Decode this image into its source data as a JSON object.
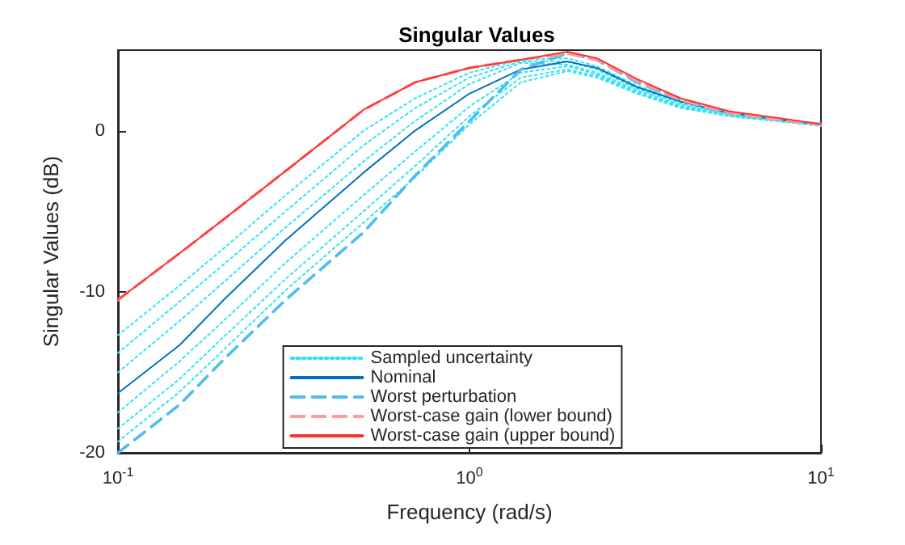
{
  "chart_data": {
    "type": "line",
    "title": "Singular Values",
    "xlabel": "Frequency (rad/s)",
    "ylabel": "Singular Values (dB)",
    "x": [
      0.1,
      0.15,
      0.2,
      0.3,
      0.5,
      0.7,
      1,
      1.4,
      1.9,
      2.3,
      3,
      4,
      5.5,
      7.5,
      10
    ],
    "log": "x",
    "xlim": [
      0.1,
      10
    ],
    "xticks": [
      {
        "value": 0.1,
        "label": "10$^{-1}$"
      },
      {
        "value": 1,
        "label": "10$^{0}$"
      },
      {
        "value": 10,
        "label": "10$^{1}$"
      }
    ],
    "ylim": [
      -20,
      5
    ],
    "yticks": [
      -20,
      -10,
      0
    ],
    "grid": false,
    "legend": "bottom",
    "marker": "none",
    "series": [
      {
        "name": "Sampled uncertainty",
        "color": "#33e3f5",
        "line_style": "dotted",
        "values": [
          -12.7,
          -9.6,
          -7.3,
          -4.0,
          0.0,
          2.0,
          3.6,
          4.4,
          4.5,
          4.0,
          2.8,
          1.8,
          1.1,
          0.7,
          0.4
        ]
      },
      {
        "color": "#33e3f5",
        "line_style": "dotted",
        "values": [
          -13.8,
          -10.6,
          -8.3,
          -5.0,
          -0.9,
          1.4,
          3.3,
          4.3,
          4.3,
          3.8,
          2.6,
          1.7,
          1.0,
          0.7,
          0.4
        ]
      },
      {
        "color": "#33e3f5",
        "line_style": "dotted",
        "values": [
          -15.0,
          -11.8,
          -9.4,
          -6.0,
          -1.9,
          0.6,
          2.9,
          4.2,
          4.1,
          3.6,
          2.5,
          1.6,
          1.0,
          0.6,
          0.4
        ]
      },
      {
        "color": "#33e3f5",
        "line_style": "dotted",
        "values": [
          -17.5,
          -14.3,
          -11.8,
          -8.2,
          -4.0,
          -1.3,
          1.5,
          3.6,
          4.0,
          3.5,
          2.4,
          1.5,
          0.9,
          0.6,
          0.4
        ]
      },
      {
        "color": "#33e3f5",
        "line_style": "dotted",
        "values": [
          -18.5,
          -15.4,
          -12.8,
          -9.2,
          -5.0,
          -2.2,
          0.9,
          3.3,
          3.8,
          3.4,
          2.3,
          1.5,
          0.9,
          0.6,
          0.3
        ]
      },
      {
        "color": "#33e3f5",
        "line_style": "dotted",
        "values": [
          -19.3,
          -16.2,
          -13.6,
          -9.9,
          -5.7,
          -2.9,
          0.4,
          3.0,
          3.7,
          3.3,
          2.3,
          1.4,
          0.9,
          0.6,
          0.3
        ]
      },
      {
        "name": "Nominal",
        "color": "#0072bd",
        "line_style": "solid",
        "values": [
          -16.3,
          -13.3,
          -10.5,
          -6.8,
          -2.6,
          0.0,
          2.3,
          3.8,
          4.3,
          3.9,
          2.7,
          1.8,
          1.1,
          0.7,
          0.4
        ]
      },
      {
        "name": "Worst perturbation",
        "color": "#4dbeee",
        "line_style": "dashed",
        "values": [
          -20.0,
          -17.0,
          -14.2,
          -10.5,
          -6.3,
          -2.8,
          0.6,
          3.8,
          4.8,
          4.4,
          3.0,
          1.9,
          1.1,
          0.7,
          0.4
        ]
      },
      {
        "name": "Worst-case gain (lower bound)",
        "color": "#ff9a9a",
        "line_style": "dashed",
        "values": [
          -10.5,
          -7.6,
          -5.5,
          -2.5,
          1.3,
          3.0,
          3.9,
          4.4,
          4.8,
          4.4,
          3.1,
          1.9,
          1.1,
          0.7,
          0.4
        ]
      },
      {
        "name": "Worst-case gain (upper bound)",
        "color": "#ff3030",
        "line_style": "solid",
        "values": [
          -10.5,
          -7.6,
          -5.5,
          -2.5,
          1.3,
          3.0,
          3.9,
          4.4,
          4.9,
          4.5,
          3.2,
          2.0,
          1.2,
          0.8,
          0.4
        ]
      }
    ]
  }
}
